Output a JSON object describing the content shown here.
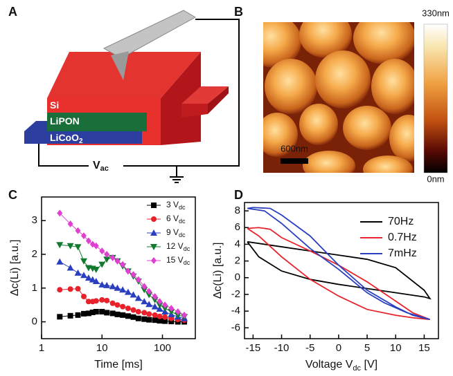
{
  "panel_labels": [
    "A",
    "B",
    "C",
    "D"
  ],
  "schematic": {
    "layers": [
      {
        "text": "Si"
      },
      {
        "text": "LiPON"
      },
      {
        "text": "LiCoO",
        "sub": "2"
      }
    ],
    "source": {
      "text": "V",
      "sub": "ac"
    }
  },
  "afm": {
    "colorbar_max": "330nm",
    "colorbar_min": "0nm",
    "scalebar": "600nm"
  },
  "chart_data": [
    {
      "type": "line",
      "log_x": true,
      "xlabel": "Time [ms]",
      "ylabel": "Δc(Li) [a.u.]",
      "xlim": [
        1,
        350
      ],
      "xticks": [
        1,
        10,
        100
      ],
      "ylim": [
        -0.5,
        3.7
      ],
      "yticks": [
        0,
        1,
        2,
        3
      ],
      "x": [
        2,
        3,
        4,
        5,
        6,
        7,
        8,
        10,
        12,
        15,
        18,
        22,
        27,
        33,
        40,
        50,
        60,
        75,
        90,
        110,
        140,
        180,
        230
      ],
      "series": [
        {
          "name": "3 V",
          "name_sub": "dc",
          "color": "#000000",
          "marker": "square",
          "values": [
            0.15,
            0.18,
            0.2,
            0.24,
            0.25,
            0.28,
            0.3,
            0.3,
            0.27,
            0.25,
            0.22,
            0.2,
            0.17,
            0.14,
            0.1,
            0.08,
            0.06,
            0.05,
            0.03,
            0.02,
            0.01,
            0.0,
            0.0
          ]
        },
        {
          "name": "6 V",
          "name_sub": "dc",
          "color": "#e8212a",
          "marker": "circle",
          "values": [
            0.95,
            0.97,
            0.98,
            0.75,
            0.6,
            0.6,
            0.62,
            0.65,
            0.63,
            0.55,
            0.5,
            0.45,
            0.4,
            0.35,
            0.3,
            0.27,
            0.23,
            0.2,
            0.16,
            0.14,
            0.1,
            0.07,
            0.05
          ]
        },
        {
          "name": "9 V",
          "name_sub": "dc",
          "color": "#2a3fbf",
          "marker": "triangle-up",
          "values": [
            1.78,
            1.6,
            1.45,
            1.38,
            1.3,
            1.25,
            1.2,
            1.1,
            1.08,
            1.05,
            1.0,
            0.95,
            0.88,
            0.8,
            0.7,
            0.6,
            0.52,
            0.45,
            0.38,
            0.3,
            0.22,
            0.15,
            0.1
          ]
        },
        {
          "name": "12 V",
          "name_sub": "dc",
          "color": "#127a2f",
          "marker": "triangle-down",
          "values": [
            2.28,
            2.25,
            2.22,
            1.8,
            1.6,
            1.58,
            1.55,
            1.7,
            1.85,
            1.9,
            1.8,
            1.65,
            1.5,
            1.35,
            1.2,
            0.95,
            0.8,
            0.65,
            0.5,
            0.4,
            0.3,
            0.2,
            0.15
          ]
        },
        {
          "name": "15 V",
          "name_sub": "dc",
          "color": "#e040d0",
          "marker": "diamond",
          "values": [
            3.22,
            2.9,
            2.7,
            2.55,
            2.4,
            2.3,
            2.25,
            2.1,
            2.0,
            1.9,
            1.8,
            1.7,
            1.5,
            1.4,
            1.25,
            1.05,
            0.9,
            0.75,
            0.6,
            0.5,
            0.4,
            0.3,
            0.2
          ]
        }
      ]
    },
    {
      "type": "line",
      "xlabel": {
        "text": "Voltage V",
        "sub": "dc",
        "after": " [V]"
      },
      "ylabel": "Δc(Li) [a.u.]",
      "xlim": [
        -16.5,
        17.5
      ],
      "xticks": [
        -15,
        -10,
        -5,
        0,
        5,
        10,
        15
      ],
      "ylim": [
        -7.3,
        9
      ],
      "yticks": [
        -6,
        -4,
        -2,
        0,
        2,
        4,
        6,
        8
      ],
      "series": [
        {
          "name": "70Hz",
          "color": "#000000",
          "x": [
            -16,
            -10,
            -5,
            0,
            5,
            10,
            15,
            16,
            15,
            10,
            5,
            0,
            -5,
            -10,
            -14,
            -16
          ],
          "values": [
            4.3,
            3.7,
            3.2,
            2.7,
            2.2,
            1.2,
            -1.5,
            -2.5,
            -2.3,
            -1.8,
            -1.3,
            -0.8,
            -0.2,
            0.8,
            2.5,
            4.3
          ]
        },
        {
          "name": "0.7Hz",
          "color": "#e8212a",
          "x": [
            -16,
            -14,
            -12,
            -10,
            -5,
            0,
            5,
            10,
            13,
            16,
            13,
            10,
            5,
            0,
            -5,
            -10,
            -14,
            -16
          ],
          "values": [
            5.9,
            6,
            5.8,
            4.8,
            3.2,
            1.5,
            -0.5,
            -2.8,
            -4.2,
            -5,
            -4.8,
            -4.5,
            -3.8,
            -2.2,
            -0.2,
            2.5,
            5,
            5.9
          ]
        },
        {
          "name": "7mHz",
          "color": "#2a3fbf",
          "x": [
            -16,
            -15,
            -12,
            -10,
            -5,
            0,
            5,
            10,
            13,
            16,
            12,
            8,
            5,
            0,
            -5,
            -10,
            -13,
            -16
          ],
          "values": [
            8.3,
            8.4,
            8.3,
            7.5,
            5,
            1.5,
            -1.5,
            -3.5,
            -4.5,
            -5,
            -4.2,
            -3,
            -1.8,
            1,
            3.5,
            6.5,
            8,
            8.3
          ]
        }
      ]
    }
  ]
}
